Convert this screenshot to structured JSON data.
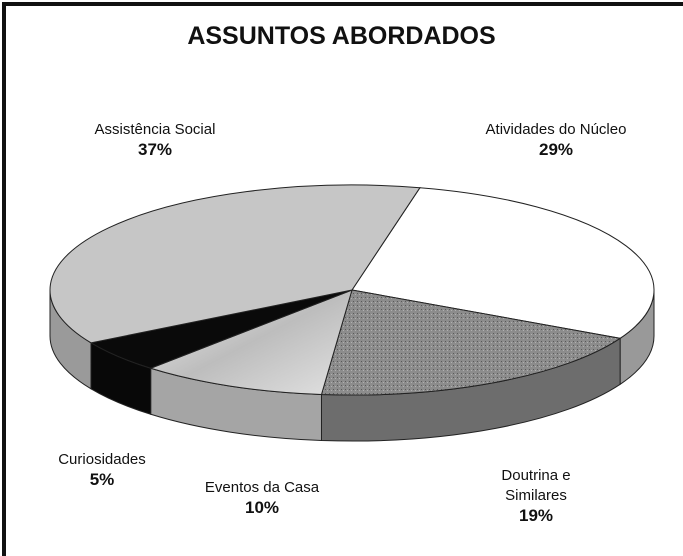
{
  "chart_data": {
    "type": "pie",
    "title": "ASSUNTOS ABORDADOS",
    "categories": [
      "Atividades do Núcleo",
      "Doutrina e Similares",
      "Eventos da Casa",
      "Curiosidades",
      "Assistência Social"
    ],
    "values": [
      29,
      19,
      10,
      5,
      37
    ],
    "value_labels": [
      "29%",
      "19%",
      "10%",
      "5%",
      "37%"
    ],
    "colors": [
      "#ffffff",
      "#8c8c8c",
      "#d4d4d4",
      "#0a0a0a",
      "#c6c6c6"
    ]
  }
}
